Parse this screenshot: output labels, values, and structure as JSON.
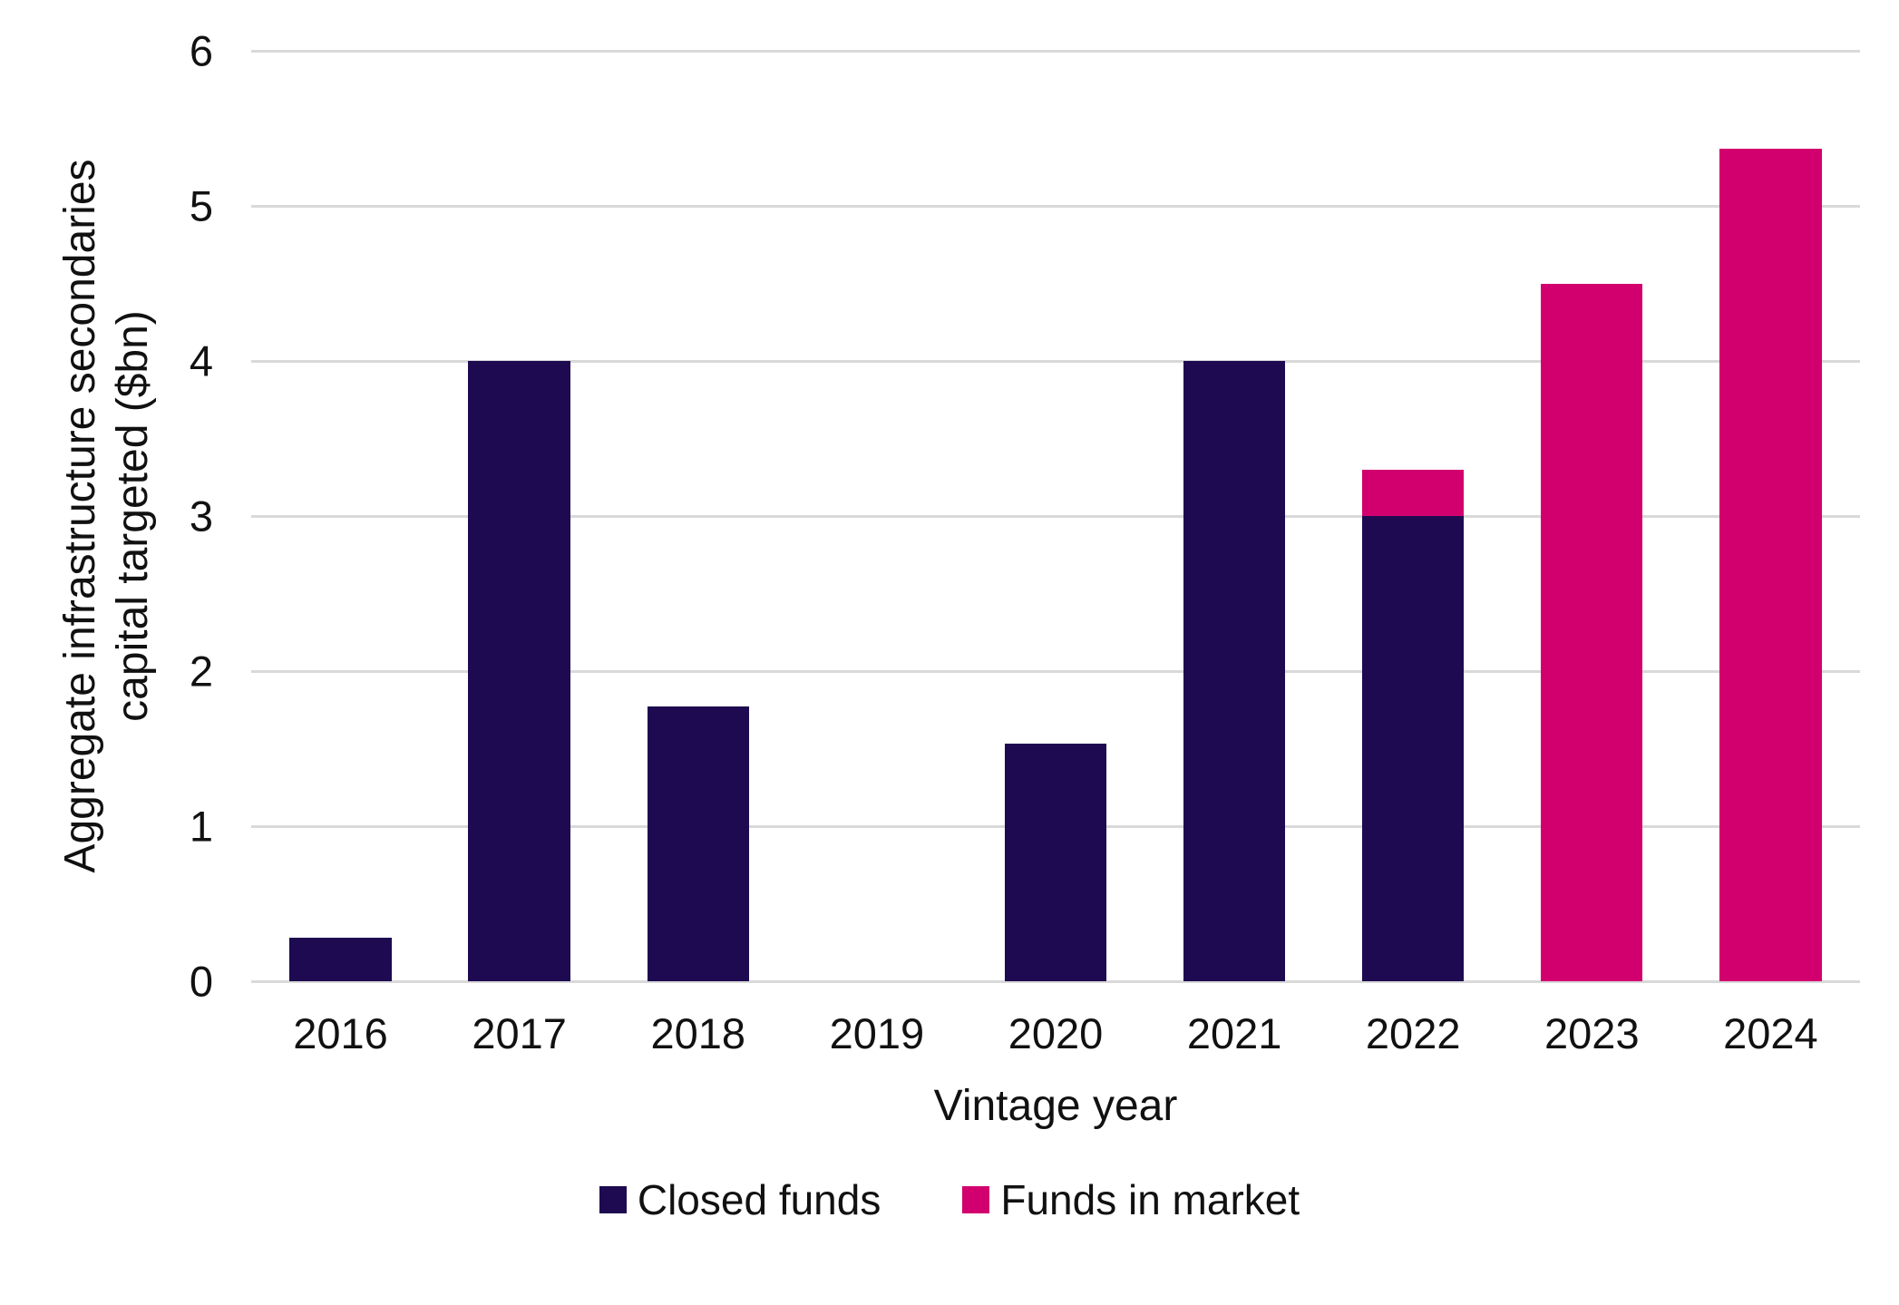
{
  "chart_data": {
    "type": "bar",
    "stacked": true,
    "title": "",
    "categories": [
      "2016",
      "2017",
      "2018",
      "2019",
      "2020",
      "2021",
      "2022",
      "2023",
      "2024"
    ],
    "series": [
      {
        "name": "Closed funds",
        "color": "#1e0a50",
        "values": [
          0.28,
          4,
          1.77,
          0,
          1.53,
          4,
          3,
          0,
          0
        ]
      },
      {
        "name": "Funds in market",
        "color": "#d2006e",
        "values": [
          0,
          0,
          0,
          0,
          0,
          0,
          0.3,
          4.5,
          5.37
        ]
      }
    ],
    "xlabel": "Vintage year",
    "ylabel": "Aggregate infrastructure secondaries capital targeted ($bn)",
    "ylabel_lines": [
      "Aggregate infrastructure secondaries",
      "capital targeted ($bn)"
    ],
    "ylim": [
      0,
      6
    ],
    "yticks": [
      0,
      1,
      2,
      3,
      4,
      5,
      6
    ],
    "grid": "horizontal",
    "gridline_color": "#d9d9d9",
    "text_color": "#111111",
    "legend_position": "bottom"
  }
}
